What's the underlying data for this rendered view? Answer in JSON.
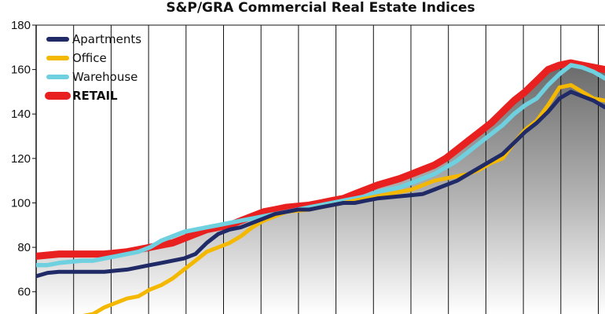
{
  "chart_data": {
    "type": "line",
    "title": "S&P/GRA Commercial Real Estate Indices",
    "xlabel": "",
    "ylabel": "",
    "ylim": [
      50,
      180
    ],
    "yticks": [
      60,
      80,
      100,
      120,
      140,
      160,
      180
    ],
    "grid": "vertical",
    "legend_placement": "top-left",
    "x": [
      0,
      2,
      4,
      6,
      8,
      10,
      12,
      14,
      16,
      18,
      20,
      22,
      24,
      26,
      28,
      30,
      32,
      34,
      36,
      38,
      40,
      42,
      44,
      46,
      48,
      50,
      52,
      54,
      56,
      58,
      60,
      62,
      64,
      66,
      68,
      70,
      72,
      74,
      76,
      78,
      80,
      82,
      84,
      86,
      88,
      90,
      92,
      94,
      96,
      98,
      100
    ],
    "series": [
      {
        "name": "Apartments",
        "color": "#1f2a66",
        "values": [
          67,
          68.5,
          69,
          69,
          69,
          69,
          69,
          69.5,
          70,
          71,
          72,
          73,
          74,
          75,
          77,
          82,
          86,
          88,
          89,
          91,
          93,
          95,
          96,
          97,
          97,
          98,
          99,
          100,
          100,
          101,
          102,
          102.5,
          103,
          103.5,
          104,
          106,
          108,
          110,
          113,
          116,
          119,
          122,
          127,
          132,
          136,
          141,
          147,
          150,
          148,
          146,
          143
        ]
      },
      {
        "name": "Office",
        "color": "#f5b800",
        "values": [
          46,
          46,
          46,
          47,
          49,
          50,
          53,
          55,
          57,
          58,
          61,
          63,
          66,
          70,
          74,
          78,
          80,
          82,
          85,
          89,
          92,
          94,
          96,
          96.5,
          97,
          98,
          99,
          100,
          101,
          102,
          103,
          104,
          105,
          106,
          108,
          110,
          111,
          112,
          113,
          115,
          118,
          120,
          127,
          133,
          137,
          144,
          152,
          153,
          150,
          147,
          146
        ]
      },
      {
        "name": "Warehouse",
        "color": "#6fd0e0",
        "values": [
          72,
          72,
          73,
          73.5,
          74,
          74,
          75,
          76,
          77,
          78,
          80,
          83,
          85,
          87,
          88,
          89,
          90,
          91,
          92,
          93,
          94,
          95,
          96,
          97,
          98,
          99,
          100,
          101,
          102,
          103,
          105,
          106,
          107,
          109,
          111,
          113,
          116,
          119,
          123,
          127,
          131,
          135,
          140,
          144,
          147,
          153,
          158,
          162,
          161,
          159,
          156
        ]
      },
      {
        "name": "RETAIL",
        "color": "#e82020",
        "values": [
          76,
          76.5,
          77,
          77,
          77,
          77,
          77,
          77.5,
          78,
          79,
          80,
          81,
          82,
          84,
          86,
          88,
          89,
          90,
          92,
          94,
          96,
          97,
          98,
          98.5,
          99,
          100,
          101,
          102,
          104,
          106,
          108,
          109.5,
          111,
          113,
          115,
          117,
          120,
          124,
          128,
          132,
          136,
          141,
          146,
          150,
          155,
          160,
          162,
          163,
          162,
          161,
          160
        ]
      }
    ]
  }
}
